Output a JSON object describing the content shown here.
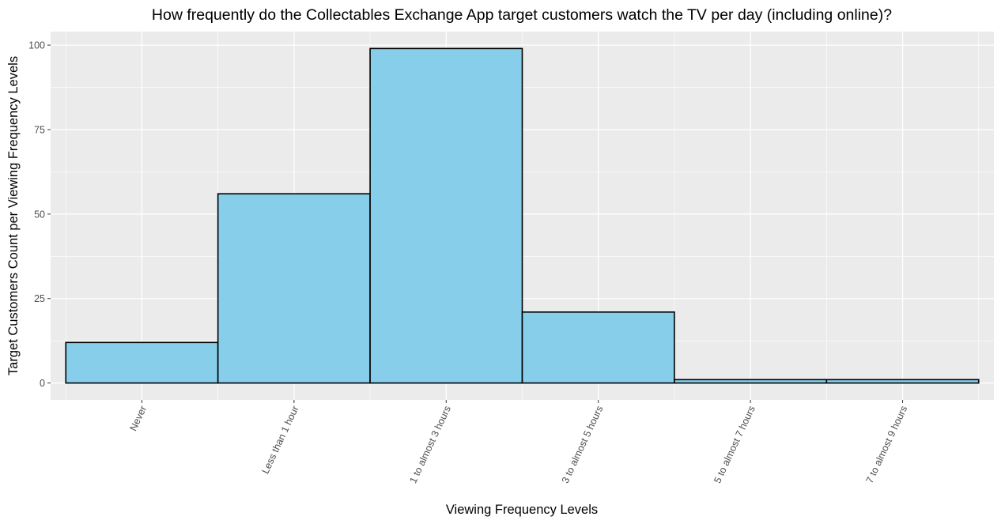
{
  "chart_data": {
    "type": "bar",
    "title": "How frequently do the Collectables Exchange App target customers watch the TV per day (including online)?",
    "xlabel": "Viewing Frequency Levels",
    "ylabel": "Target Customers Count per Viewing Frequency Levels",
    "categories": [
      "Never",
      "Less than 1 hour",
      "1 to almost 3 hours",
      "3 to almost 5 hours",
      "5 to almost 7 hours",
      "7 to almost 9 hours"
    ],
    "values": [
      12,
      56,
      99,
      21,
      1,
      1
    ],
    "ylim": [
      -5,
      104
    ],
    "y_ticks": [
      0,
      25,
      50,
      75,
      100
    ],
    "grid": true,
    "legend": "none",
    "colors": {
      "panel_background": "#ebebeb",
      "grid_major": "#ffffff",
      "bar_fill": "#87ceeb",
      "bar_outline": "#000000",
      "tick_text": "#4d4d4d",
      "tick_mark": "#333333"
    }
  }
}
